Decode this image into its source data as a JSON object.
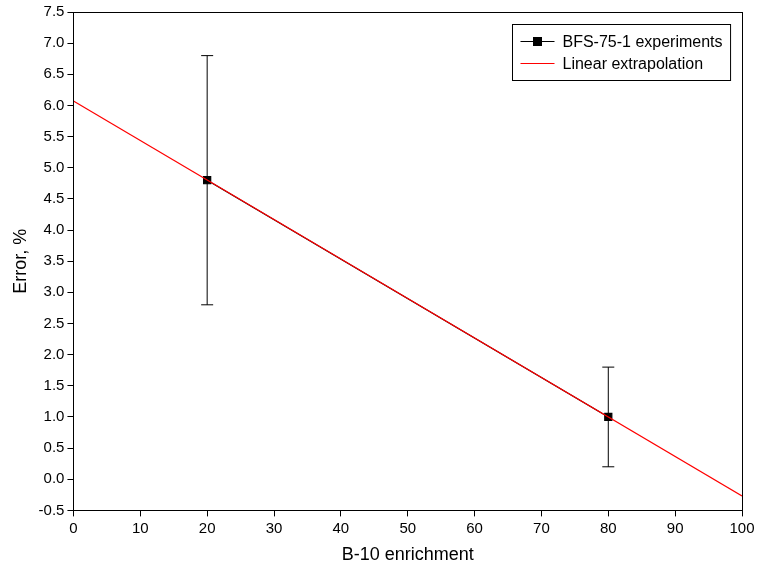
{
  "chart_data": {
    "type": "line",
    "x_label": "B-10 enrichment",
    "y_label": "Error, %",
    "series": [
      {
        "name": "BFS-75-1 experiments",
        "color": "#000000",
        "marker": "square",
        "line_style": "solid",
        "x": [
          20,
          80
        ],
        "values": [
          4.8,
          1.0
        ],
        "errors": [
          2.0,
          0.8
        ]
      },
      {
        "name": "Linear extrapolation",
        "color": "#ff0000",
        "marker": "none",
        "line_style": "solid",
        "x": [
          0,
          100
        ],
        "values": [
          6.07,
          -0.27
        ]
      }
    ],
    "xlim": [
      0,
      100
    ],
    "xticks": [
      0,
      10,
      20,
      30,
      40,
      50,
      60,
      70,
      80,
      90,
      100
    ],
    "ylim": [
      -0.5,
      7.5
    ],
    "yticks": [
      -0.5,
      {
        "value": 0,
        "label": "0.0"
      },
      0.5,
      {
        "value": 1,
        "label": "1.0"
      },
      1.5,
      {
        "value": 2,
        "label": "2.0"
      },
      2.5,
      {
        "value": 3,
        "label": "3.0"
      },
      3.5,
      {
        "value": 4,
        "label": "4.0"
      },
      4.5,
      {
        "value": 5,
        "label": "5.0"
      },
      5.5,
      {
        "value": 6,
        "label": "6.0"
      },
      6.5,
      {
        "value": 7,
        "label": "7.0"
      },
      7.5
    ],
    "grid": false,
    "legend": "top-right"
  }
}
